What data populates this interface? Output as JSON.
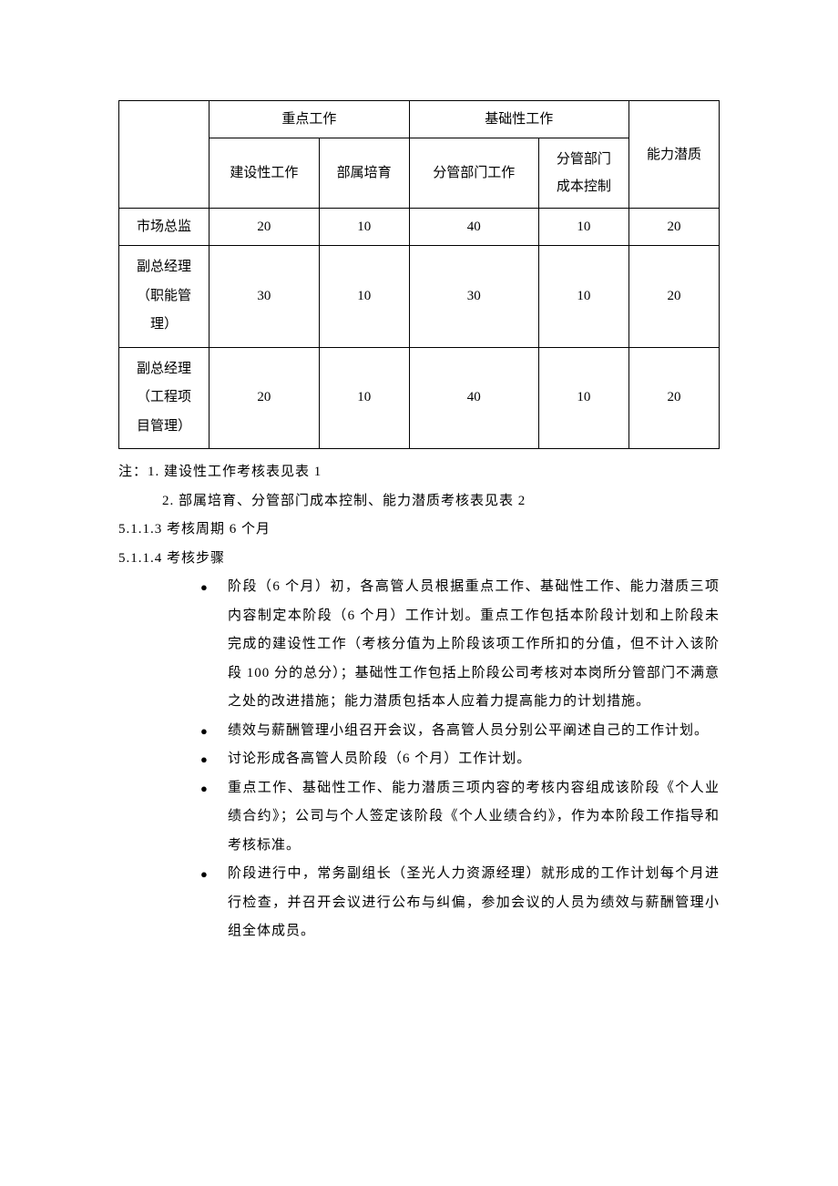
{
  "table": {
    "header_group1": "重点工作",
    "header_group2": "基础性工作",
    "header_col5": "能力潜质",
    "sub_col1": "建设性工作",
    "sub_col2": "部属培育",
    "sub_col3": "分管部门工作",
    "sub_col4_line1": "分管部门",
    "sub_col4_line2": "成本控制",
    "rows": [
      {
        "label": "市场总监",
        "v1": "20",
        "v2": "10",
        "v3": "40",
        "v4": "10",
        "v5": "20"
      },
      {
        "label_line1": "副总经理",
        "label_line2": "（职能管",
        "label_line3": "理）",
        "v1": "30",
        "v2": "10",
        "v3": "30",
        "v4": "10",
        "v5": "20"
      },
      {
        "label_line1": "副总经理",
        "label_line2": "（工程项",
        "label_line3": "目管理）",
        "v1": "20",
        "v2": "10",
        "v3": "40",
        "v4": "10",
        "v5": "20"
      }
    ]
  },
  "notes": {
    "line1": "注：1. 建设性工作考核表见表 1",
    "line2": "2. 部属培育、分管部门成本控制、能力潜质考核表见表 2"
  },
  "section1": "5.1.1.3 考核周期    6 个月",
  "section2": "5.1.1.4 考核步骤",
  "bullets": {
    "b1": "阶段（6 个月）初，各高管人员根据重点工作、基础性工作、能力潜质三项内容制定本阶段（6 个月）工作计划。重点工作包括本阶段计划和上阶段未完成的建设性工作（考核分值为上阶段该项工作所扣的分值，但不计入该阶段 100 分的总分）；基础性工作包括上阶段公司考核对本岗所分管部门不满意之处的改进措施；能力潜质包括本人应着力提高能力的计划措施。",
    "b2": "绩效与薪酬管理小组召开会议，各高管人员分别公平阐述自己的工作计划。",
    "b3": "讨论形成各高管人员阶段（6 个月）工作计划。",
    "b4": "重点工作、基础性工作、能力潜质三项内容的考核内容组成该阶段《个人业绩合约》；公司与个人签定该阶段《个人业绩合约》，作为本阶段工作指导和考核标准。",
    "b5": "阶段进行中，常务副组长（圣光人力资源经理）就形成的工作计划每个月进行检查，并召开会议进行公布与纠偏，参加会议的人员为绩效与薪酬管理小组全体成员。"
  }
}
